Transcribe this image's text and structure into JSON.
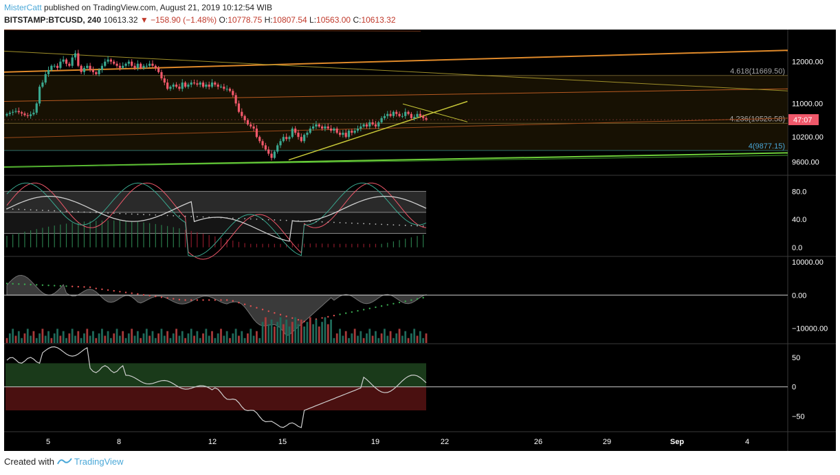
{
  "header": {
    "author": "MisterCatt",
    "published": "published on TradingView.com, August 21, 2019 10:12:54 WIB"
  },
  "symbol": {
    "name": "BITSTAMP:BTCUSD, 240",
    "last": "10613.32",
    "change": "−158.90 (−1.48%)",
    "open_label": "O:",
    "open": "10778.75",
    "high_label": "H:",
    "high": "10807.54",
    "low_label": "L:",
    "low": "10563.00",
    "close_label": "C:",
    "close": "10613.32"
  },
  "footer": {
    "created": "Created with",
    "brand": "TradingView"
  },
  "colors": {
    "background": "#000000",
    "bull": "#3aa88f",
    "bear": "#f0586a",
    "price_tag": "#f0586a",
    "accent": "#4aa8d8"
  },
  "chart_data": [
    {
      "type": "candlestick",
      "panel": "price",
      "y_ticks": [
        "12000.00",
        "11000.00",
        "10200.00",
        "9600.00"
      ],
      "y_tick_values": [
        12000,
        11000,
        10200,
        9600
      ],
      "ylim": [
        9300,
        12750
      ],
      "x_ticks": [
        "5",
        "8",
        "12",
        "15",
        "19",
        "22",
        "26",
        "29",
        "Sep",
        "4"
      ],
      "price_tag": "47:07",
      "price_tag_value": 10613,
      "fib_levels": [
        {
          "label": "4.618(11669.50)",
          "value": 11669.5,
          "color": "#a8a8a8"
        },
        {
          "label": "4.236(10526.58)",
          "value": 10526.6,
          "color": "#a8a8a8"
        },
        {
          "label": "4(9877.15)",
          "value": 9877.2,
          "color": "#4aa8d8"
        }
      ],
      "closes": [
        10750,
        10780,
        10800,
        10820,
        10790,
        10760,
        10720,
        10700,
        10740,
        10780,
        11000,
        11400,
        11500,
        11700,
        11800,
        11900,
        11900,
        11850,
        12000,
        12050,
        11950,
        11900,
        12100,
        12200,
        11900,
        11750,
        11850,
        11900,
        11800,
        11750,
        11700,
        11800,
        11900,
        12000,
        12050,
        12000,
        11950,
        11900,
        11850,
        11900,
        11950,
        12000,
        11900,
        11850,
        11950,
        11850,
        11900,
        11900,
        11950,
        11900,
        11850,
        11750,
        11600,
        11500,
        11350,
        11400,
        11450,
        11400,
        11350,
        11500,
        11400,
        11450,
        11500,
        11480,
        11450,
        11500,
        11400,
        11450,
        11400,
        11500,
        11450,
        11400,
        11400,
        11350,
        11350,
        11300,
        11200,
        11000,
        10800,
        10700,
        10600,
        10500,
        10450,
        10400,
        10200,
        10100,
        10000,
        9900,
        9800,
        9700,
        9850,
        10000,
        10100,
        10200,
        10150,
        10200,
        10400,
        10300,
        10200,
        10100,
        10250,
        10300,
        10400,
        10450,
        10500,
        10450,
        10400,
        10450,
        10400,
        10350,
        10400,
        10300,
        10250,
        10300,
        10200,
        10350,
        10300,
        10350,
        10400,
        10450,
        10500,
        10450,
        10550,
        10500,
        10450,
        10550,
        10650,
        10700,
        10750,
        10700,
        10800,
        10750,
        10700,
        10700,
        10800,
        10750,
        10650,
        10680,
        10750,
        10700,
        10650,
        10613
      ],
      "series": [
        {
          "name": "trend up",
          "kind": "line",
          "color": "#6fcf3a"
        },
        {
          "name": "trend down",
          "kind": "line",
          "color": "#c8c838"
        }
      ]
    },
    {
      "type": "line",
      "panel": "oscillator",
      "y_ticks": [
        "80.0",
        "40.0",
        "0.0"
      ],
      "y_tick_values": [
        80,
        40,
        0
      ],
      "ylim": [
        -12,
        102
      ],
      "bands": [
        80,
        50,
        20
      ],
      "series": [
        {
          "name": "k",
          "color": "#3aa88f"
        },
        {
          "name": "d",
          "color": "#f0586a"
        },
        {
          "name": "rsi",
          "color": "#cfcfcf"
        }
      ]
    },
    {
      "type": "area",
      "panel": "momentum",
      "y_ticks": [
        "10000.00",
        "0.00",
        "−10000.00"
      ],
      "y_tick_values": [
        10000,
        0,
        -10000
      ],
      "ylim": [
        -14500,
        11500
      ]
    },
    {
      "type": "line",
      "panel": "cci",
      "y_ticks": [
        "50",
        "0",
        "−50"
      ],
      "y_tick_values": [
        50,
        0,
        -50
      ],
      "ylim": [
        -75,
        72
      ],
      "zones": {
        "upper": 40,
        "lower": -40
      }
    }
  ]
}
